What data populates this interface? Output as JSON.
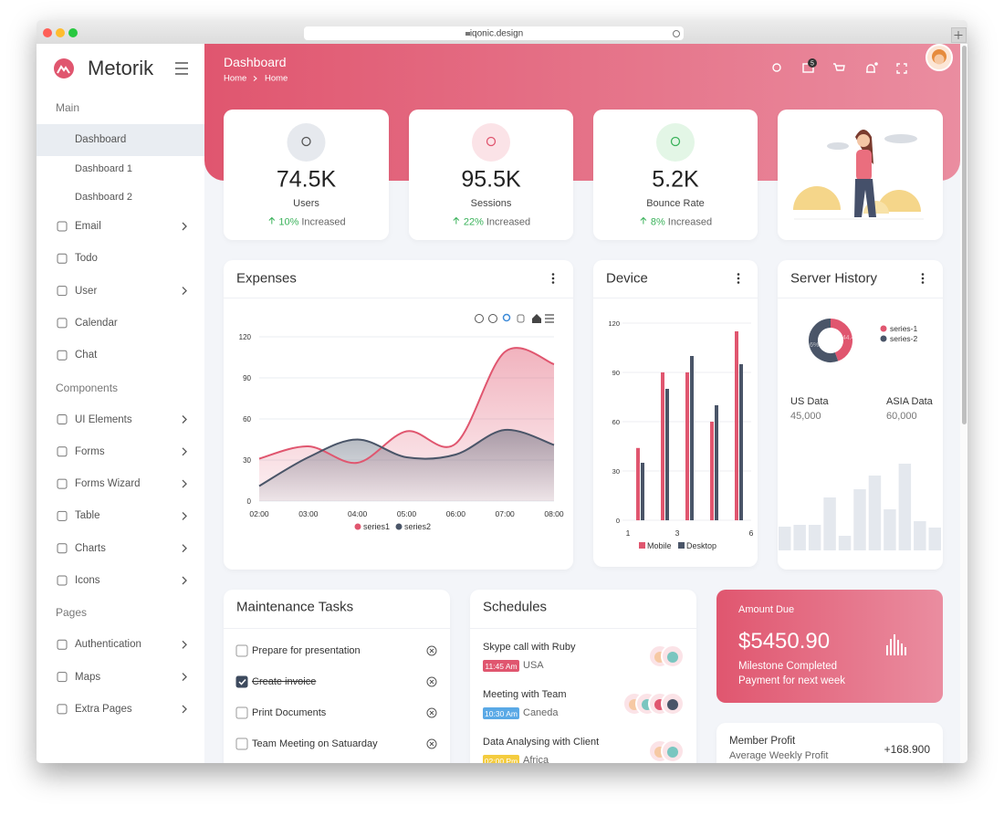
{
  "browser": {
    "url": "iqonic.design"
  },
  "sidebar": {
    "brand": "Metorik",
    "sections": [
      {
        "title": "Main",
        "items": [
          {
            "label": "Dashboard",
            "has_submenu": true,
            "active": true,
            "children": [
              "Dashboard 1",
              "Dashboard 2"
            ]
          },
          {
            "label": "Email",
            "has_submenu": true
          },
          {
            "label": "Todo",
            "has_submenu": false
          },
          {
            "label": "User",
            "has_submenu": true
          },
          {
            "label": "Calendar",
            "has_submenu": false
          },
          {
            "label": "Chat",
            "has_submenu": false
          }
        ]
      },
      {
        "title": "Components",
        "items": [
          {
            "label": "UI Elements",
            "has_submenu": true
          },
          {
            "label": "Forms",
            "has_submenu": true
          },
          {
            "label": "Forms Wizard",
            "has_submenu": true
          },
          {
            "label": "Table",
            "has_submenu": true
          },
          {
            "label": "Charts",
            "has_submenu": true
          },
          {
            "label": "Icons",
            "has_submenu": true
          }
        ]
      },
      {
        "title": "Pages",
        "items": [
          {
            "label": "Authentication",
            "has_submenu": true
          },
          {
            "label": "Maps",
            "has_submenu": true
          },
          {
            "label": "Extra Pages",
            "has_submenu": true
          }
        ]
      }
    ]
  },
  "header": {
    "title": "Dashboard",
    "breadcrumb": [
      "Home",
      "Home"
    ],
    "mail_count": 5
  },
  "stats": [
    {
      "value": "74.5K",
      "label": "Users",
      "change": "10%",
      "change_text": "Increased"
    },
    {
      "value": "95.5K",
      "label": "Sessions",
      "change": "22%",
      "change_text": "Increased"
    },
    {
      "value": "5.2K",
      "label": "Bounce Rate",
      "change": "8%",
      "change_text": "Increased"
    }
  ],
  "expenses": {
    "title": "Expenses",
    "chart": {
      "type": "area",
      "x": [
        "02:00",
        "03:00",
        "04:00",
        "05:00",
        "06:00",
        "07:00",
        "08:00"
      ],
      "ylim": [
        0,
        120
      ],
      "yticks": [
        0,
        30,
        60,
        90,
        120
      ],
      "series": [
        {
          "name": "series1",
          "color": "#e0566f",
          "values": [
            31,
            40,
            28,
            51,
            42,
            109,
            100
          ]
        },
        {
          "name": "series2",
          "color": "#4a5568",
          "values": [
            11,
            32,
            45,
            32,
            34,
            52,
            41
          ]
        }
      ]
    }
  },
  "device": {
    "title": "Device",
    "chart": {
      "type": "bar",
      "x": [
        1.5,
        2.5,
        3.5,
        4.5,
        5.5
      ],
      "xlim": [
        1,
        6
      ],
      "xticks": [
        1,
        3,
        6
      ],
      "ylim": [
        0,
        120
      ],
      "yticks": [
        0,
        30,
        60,
        90,
        120
      ],
      "series": [
        {
          "name": "Mobile",
          "color": "#e0566f",
          "values": [
            44,
            90,
            90,
            60,
            115
          ]
        },
        {
          "name": "Desktop",
          "color": "#4a5568",
          "values": [
            35,
            80,
            100,
            70,
            95
          ]
        }
      ]
    }
  },
  "server_history": {
    "title": "Server History",
    "donut": {
      "type": "pie",
      "categories": [
        "series-1",
        "series-2"
      ],
      "values": [
        44.4,
        55.6
      ],
      "value_labels": [
        "44.4%",
        "55.6%"
      ],
      "colors": [
        "#e0566f",
        "#4a5568"
      ]
    },
    "stats": [
      {
        "label": "US Data",
        "value": "45,000"
      },
      {
        "label": "ASIA Data",
        "value": "60,000"
      }
    ],
    "bars": {
      "type": "bar",
      "values": [
        26,
        28,
        28,
        58,
        16,
        67,
        82,
        45,
        95,
        32,
        25
      ],
      "color": "#e4e8ee"
    }
  },
  "maintenance": {
    "title": "Maintenance Tasks",
    "tasks": [
      {
        "text": "Prepare for presentation",
        "done": false
      },
      {
        "text": "Create invoice",
        "done": true
      },
      {
        "text": "Print Documents",
        "done": false
      },
      {
        "text": "Team Meeting on Satuarday",
        "done": false
      }
    ]
  },
  "schedules": {
    "title": "Schedules",
    "items": [
      {
        "title": "Skype call with Ruby",
        "time": "11:45 Am",
        "place": "USA",
        "badge_color": "#e0566f",
        "attendees": 2
      },
      {
        "title": "Meeting with Team",
        "time": "10:30 Am",
        "place": "Caneda",
        "badge_color": "#5aa9e6",
        "attendees": 4
      },
      {
        "title": "Data Analysing with Client",
        "time": "02:00 Pm",
        "place": "Africa",
        "badge_color": "#f4cc3f",
        "attendees": 2
      }
    ]
  },
  "amount_due": {
    "label": "Amount Due",
    "amount": "$5450.90",
    "line1": "Milestone Completed",
    "line2": "Payment for next week"
  },
  "member_profit": {
    "title": "Member Profit",
    "subtitle": "Average Weekly Profit",
    "value": "+168.900"
  }
}
